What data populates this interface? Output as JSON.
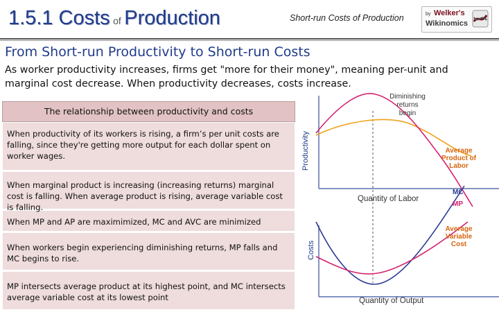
{
  "header": {
    "title_prefix": "1.5.1 Costs",
    "title_of": "of",
    "title_suffix": "Production",
    "subtitle": "Short-run Costs of Production",
    "logo_by": "by",
    "logo_name1": "Welker's",
    "logo_name2": "Wikinomics"
  },
  "heading": "From Short-run Productivity to Short-run Costs",
  "intro": "As worker productivity increases, firms get \"more for their money\", meaning per-unit and marginal cost decrease. When productivity decreases, costs increase.",
  "table": {
    "header": "The relationship between productivity and costs",
    "rows": [
      "When productivity of its workers is rising, a firm’s per unit costs are falling, since they're getting more output for each dollar spent on worker wages.",
      "When marginal product is increasing (increasing returns) marginal cost is falling. When average product is rising, average variable cost is falling.",
      "When MP and AP are maximimized, MC and AVC are minimized",
      "When  workers begin experiencing diminishing returns, MP falls and MC begins to rise.",
      "MP intersects average product at its highest point, and MC intersects average variable cost at its lowest point"
    ]
  },
  "chart": {
    "top_ylabel": "Productivity",
    "top_xlabel": "Quantity of Labor",
    "bottom_ylabel": "Costs",
    "bottom_xlabel": "Quantity of Output",
    "annotation_line1": "Diminishing",
    "annotation_line2": "returns",
    "annotation_line3": "begin",
    "apl_label1": "Average",
    "apl_label2": "Product of",
    "apl_label3": "Labor",
    "mc_label": "MC",
    "mp_label": "MP",
    "avc_label1": "Average",
    "avc_label2": "Variable",
    "avc_label3": "Cost",
    "colors": {
      "mp": "#d4226f",
      "mc": "#2a3b94",
      "avg": "#f0a21a",
      "label": "#d6650f",
      "axis": "#4a5fa0"
    }
  }
}
